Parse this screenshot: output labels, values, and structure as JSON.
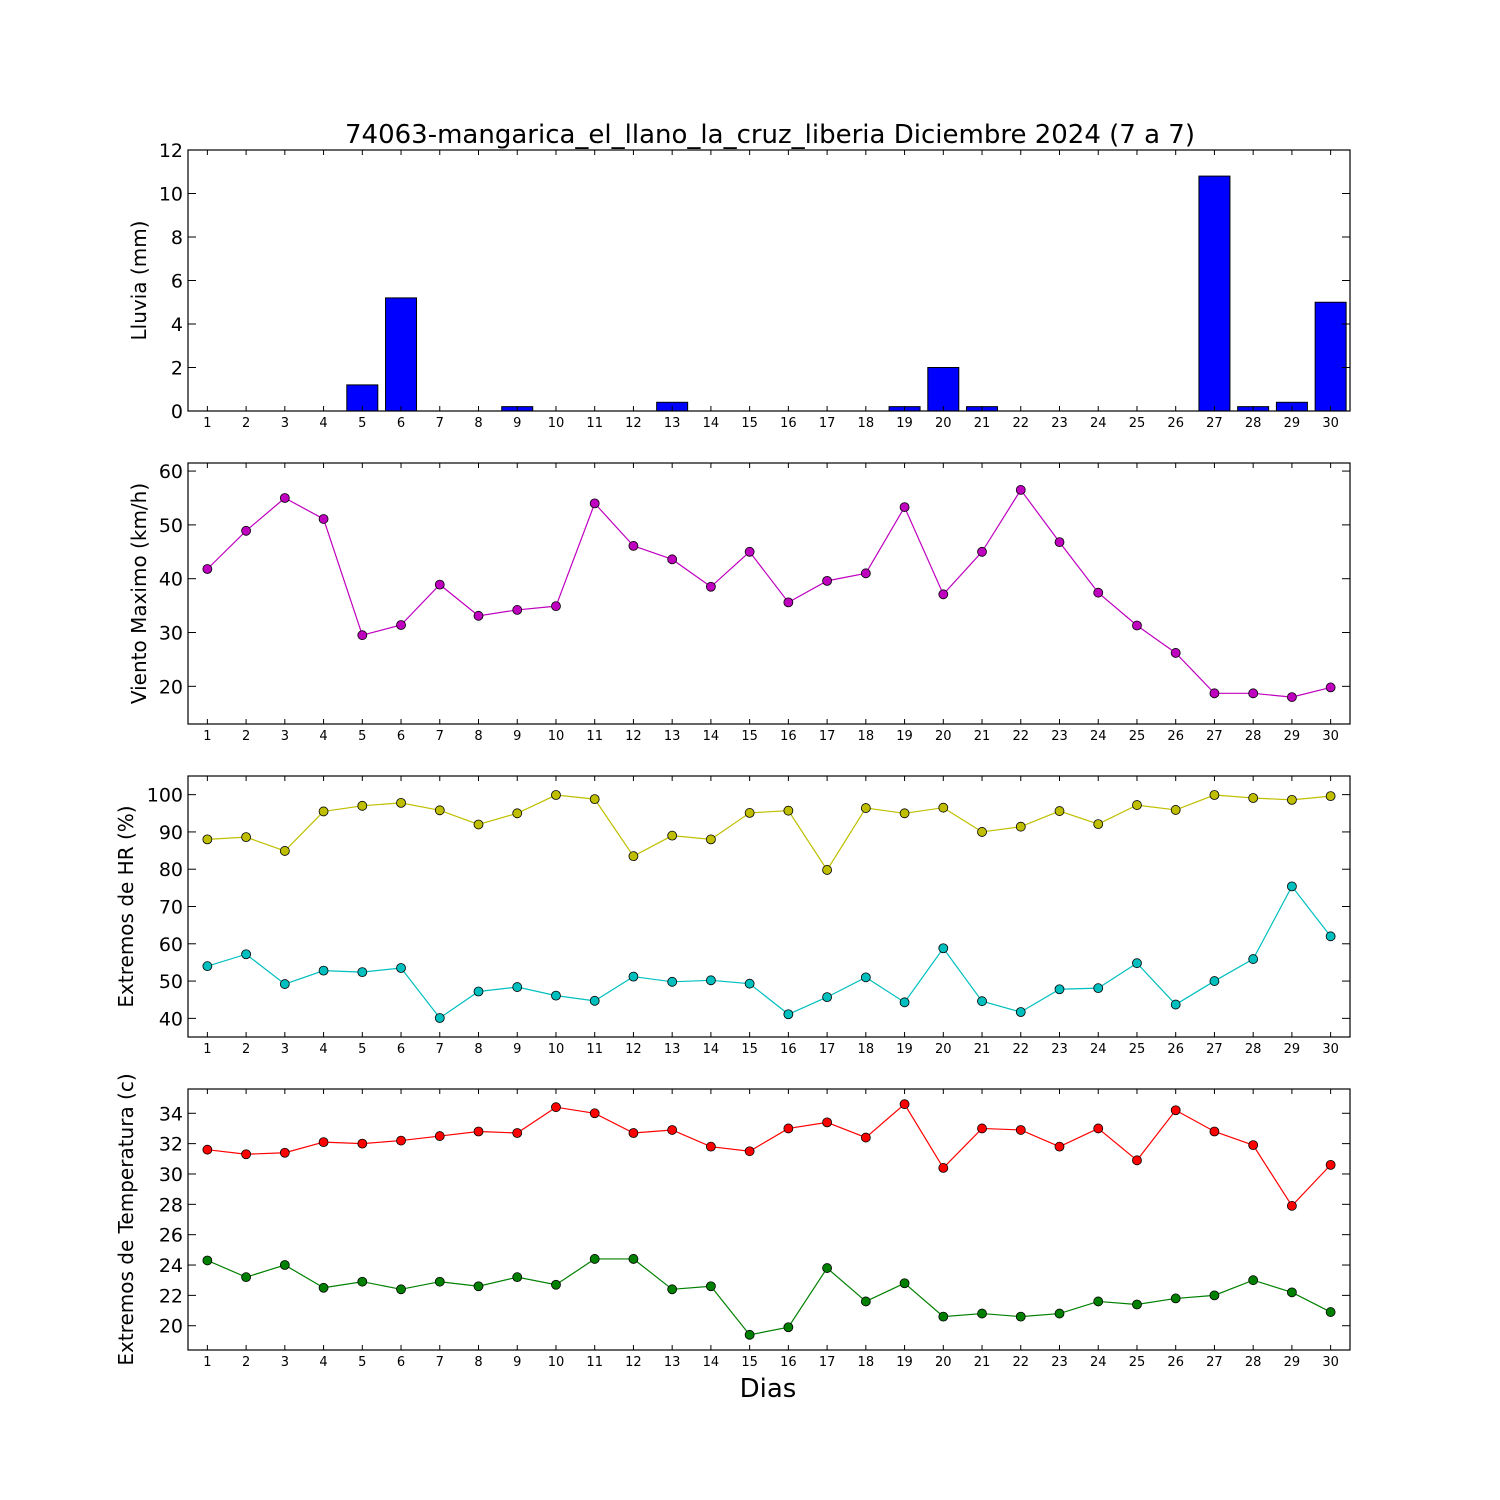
{
  "title": "74063-mangarica_el_llano_la_cruz_liberia Diciembre 2024  (7 a 7)",
  "xlabel": "Dias",
  "chart_data": [
    {
      "type": "bar",
      "ylabel": "Lluvia (mm)",
      "ylim": [
        0,
        12
      ],
      "yticks": [
        0,
        2,
        4,
        6,
        8,
        10,
        12
      ],
      "x": [
        1,
        2,
        3,
        4,
        5,
        6,
        7,
        8,
        9,
        10,
        11,
        12,
        13,
        14,
        15,
        16,
        17,
        18,
        19,
        20,
        21,
        22,
        23,
        24,
        25,
        26,
        27,
        28,
        29,
        30
      ],
      "series": [
        {
          "color": "#0000ff",
          "values": [
            0,
            0,
            0,
            0,
            1.2,
            5.2,
            0,
            0,
            0.2,
            0,
            0,
            0,
            0.4,
            0,
            0,
            0,
            0,
            0,
            0.2,
            2.0,
            0.2,
            0,
            0,
            0,
            0,
            0,
            10.8,
            0.2,
            0.4,
            5.0
          ]
        }
      ]
    },
    {
      "type": "line",
      "ylabel": "Viento Maximo (km/h)",
      "ylim": [
        13,
        61.5
      ],
      "yticks": [
        20,
        30,
        40,
        50,
        60
      ],
      "x": [
        1,
        2,
        3,
        4,
        5,
        6,
        7,
        8,
        9,
        10,
        11,
        12,
        13,
        14,
        15,
        16,
        17,
        18,
        19,
        20,
        21,
        22,
        23,
        24,
        25,
        26,
        27,
        28,
        29,
        30
      ],
      "series": [
        {
          "color": "#bf00bf",
          "values": [
            41.8,
            48.9,
            55.0,
            51.1,
            29.5,
            31.4,
            38.9,
            33.1,
            34.2,
            34.9,
            54.0,
            46.1,
            43.6,
            38.5,
            45.0,
            35.6,
            39.6,
            41.0,
            53.3,
            37.1,
            45.0,
            56.5,
            46.8,
            37.4,
            31.3,
            26.2,
            18.7,
            18.7,
            18.0,
            19.8
          ]
        }
      ]
    },
    {
      "type": "line",
      "ylabel": "Extremos de HR (%)",
      "ylim": [
        35,
        105
      ],
      "yticks": [
        40,
        50,
        60,
        70,
        80,
        90,
        100
      ],
      "x": [
        1,
        2,
        3,
        4,
        5,
        6,
        7,
        8,
        9,
        10,
        11,
        12,
        13,
        14,
        15,
        16,
        17,
        18,
        19,
        20,
        21,
        22,
        23,
        24,
        25,
        26,
        27,
        28,
        29,
        30
      ],
      "series": [
        {
          "color": "#bfbf00",
          "values": [
            88.0,
            88.6,
            84.9,
            95.5,
            97.0,
            97.8,
            95.8,
            92.0,
            95.0,
            99.9,
            98.8,
            83.5,
            89.0,
            88.0,
            95.1,
            95.7,
            79.8,
            96.4,
            95.0,
            96.5,
            90.0,
            91.4,
            95.6,
            92.1,
            97.2,
            95.9,
            99.9,
            99.1,
            98.6,
            99.6
          ]
        },
        {
          "color": "#00bfbf",
          "values": [
            54.0,
            57.2,
            49.2,
            52.8,
            52.4,
            53.5,
            40.1,
            47.2,
            48.4,
            46.1,
            44.7,
            51.2,
            49.8,
            50.2,
            49.3,
            41.1,
            45.7,
            51.0,
            44.3,
            58.8,
            44.6,
            41.7,
            47.8,
            48.1,
            54.8,
            43.7,
            50.0,
            55.9,
            75.4,
            62.0
          ]
        }
      ]
    },
    {
      "type": "line",
      "ylabel": "Extremos de Temperatura (c)",
      "ylim": [
        18.4,
        35.6
      ],
      "yticks": [
        20,
        22,
        24,
        26,
        28,
        30,
        32,
        34
      ],
      "x": [
        1,
        2,
        3,
        4,
        5,
        6,
        7,
        8,
        9,
        10,
        11,
        12,
        13,
        14,
        15,
        16,
        17,
        18,
        19,
        20,
        21,
        22,
        23,
        24,
        25,
        26,
        27,
        28,
        29,
        30
      ],
      "series": [
        {
          "color": "#ff0000",
          "values": [
            31.6,
            31.3,
            31.4,
            32.1,
            32.0,
            32.2,
            32.5,
            32.8,
            32.7,
            34.4,
            34.0,
            32.7,
            32.9,
            31.8,
            31.5,
            33.0,
            33.4,
            32.4,
            34.6,
            30.4,
            33.0,
            32.9,
            31.8,
            33.0,
            30.9,
            34.2,
            32.8,
            31.9,
            27.9,
            30.6
          ]
        },
        {
          "color": "#008000",
          "values": [
            24.3,
            23.2,
            24.0,
            22.5,
            22.9,
            22.4,
            22.9,
            22.6,
            23.2,
            22.7,
            24.4,
            24.4,
            22.4,
            22.6,
            19.4,
            19.9,
            23.8,
            21.6,
            22.8,
            20.6,
            20.8,
            20.6,
            20.8,
            21.6,
            21.4,
            21.8,
            22.0,
            23.0,
            22.2,
            20.9
          ]
        }
      ]
    }
  ]
}
